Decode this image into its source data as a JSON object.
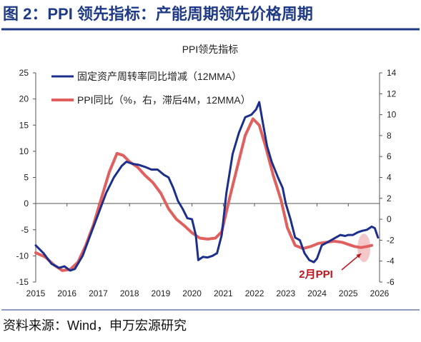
{
  "figure": {
    "heading": "图 2：PPI 领先指标：产能周期领先价格周期",
    "source": "资料来源：Wind，申万宏源研究",
    "colors": {
      "heading": "#1f3a86",
      "rule": "#1f3a86",
      "annotation": "#c0141c",
      "highlight": "#f0b4b8"
    }
  },
  "chart_data": {
    "type": "line",
    "title": "PPI领先指标",
    "x_axis": {
      "min": 2015,
      "max": 2026,
      "ticks": [
        2015,
        2016,
        2017,
        2018,
        2019,
        2020,
        2021,
        2022,
        2023,
        2024,
        2025,
        2026
      ]
    },
    "y_left": {
      "min": -15,
      "max": 25,
      "ticks": [
        -15,
        -10,
        -5,
        0,
        5,
        10,
        15,
        20,
        25
      ]
    },
    "y_right": {
      "min": -6,
      "max": 14,
      "ticks": [
        -6,
        -4,
        -2,
        0,
        2,
        4,
        6,
        8,
        10,
        12,
        14
      ]
    },
    "grid": false,
    "legend_position": "top-left",
    "series": [
      {
        "name": "固定资产周转率同比增减（12MMA）",
        "axis": "left",
        "color": "#1c2f8c",
        "points": [
          [
            2015.0,
            -8
          ],
          [
            2015.25,
            -9.5
          ],
          [
            2015.5,
            -11.5
          ],
          [
            2015.75,
            -12.3
          ],
          [
            2015.92,
            -12
          ],
          [
            2016.1,
            -12.8
          ],
          [
            2016.25,
            -12.5
          ],
          [
            2016.5,
            -10
          ],
          [
            2016.75,
            -6
          ],
          [
            2017.0,
            -2
          ],
          [
            2017.25,
            2
          ],
          [
            2017.5,
            5
          ],
          [
            2017.75,
            7.2
          ],
          [
            2017.9,
            8
          ],
          [
            2018.1,
            7.6
          ],
          [
            2018.3,
            7.4
          ],
          [
            2018.5,
            7.0
          ],
          [
            2018.7,
            6.5
          ],
          [
            2018.9,
            6.5
          ],
          [
            2019.1,
            5.5
          ],
          [
            2019.25,
            5.0
          ],
          [
            2019.4,
            3.0
          ],
          [
            2019.55,
            0.5
          ],
          [
            2019.7,
            -1.0
          ],
          [
            2019.85,
            -2.8
          ],
          [
            2020.0,
            -3.0
          ],
          [
            2020.12,
            -6.0
          ],
          [
            2020.2,
            -10.8
          ],
          [
            2020.35,
            -10.2
          ],
          [
            2020.5,
            -10.3
          ],
          [
            2020.65,
            -10.0
          ],
          [
            2020.8,
            -9.5
          ],
          [
            2020.95,
            -6.0
          ],
          [
            2021.1,
            2.0
          ],
          [
            2021.3,
            9.5
          ],
          [
            2021.5,
            13.5
          ],
          [
            2021.7,
            16.5
          ],
          [
            2021.9,
            17.0
          ],
          [
            2022.05,
            18.0
          ],
          [
            2022.15,
            19.4
          ],
          [
            2022.25,
            16.0
          ],
          [
            2022.4,
            11.0
          ],
          [
            2022.55,
            8.0
          ],
          [
            2022.75,
            5.0
          ],
          [
            2022.9,
            3.0
          ],
          [
            2023.0,
            0.0
          ],
          [
            2023.15,
            -3.0
          ],
          [
            2023.3,
            -6.5
          ],
          [
            2023.45,
            -7.0
          ],
          [
            2023.6,
            -9.5
          ],
          [
            2023.75,
            -10.8
          ],
          [
            2023.9,
            -11.2
          ],
          [
            2024.0,
            -10.5
          ],
          [
            2024.15,
            -8.0
          ],
          [
            2024.3,
            -7.5
          ],
          [
            2024.45,
            -7.0
          ],
          [
            2024.6,
            -6.5
          ],
          [
            2024.75,
            -6.0
          ],
          [
            2024.9,
            -6.2
          ],
          [
            2025.0,
            -6.0
          ],
          [
            2025.15,
            -6.0
          ],
          [
            2025.3,
            -5.5
          ],
          [
            2025.45,
            -5.2
          ],
          [
            2025.6,
            -5.0
          ],
          [
            2025.75,
            -4.4
          ],
          [
            2025.85,
            -4.7
          ],
          [
            2025.95,
            -6.5
          ]
        ]
      },
      {
        "name": "PPI同比（%，右，滞后4M，12MMA）",
        "axis": "right",
        "color": "#e06060",
        "points": [
          [
            2015.0,
            -3.2
          ],
          [
            2015.3,
            -3.6
          ],
          [
            2015.6,
            -4.4
          ],
          [
            2015.85,
            -4.9
          ],
          [
            2016.1,
            -4.8
          ],
          [
            2016.35,
            -4.1
          ],
          [
            2016.6,
            -2.5
          ],
          [
            2016.85,
            -0.5
          ],
          [
            2017.1,
            2.0
          ],
          [
            2017.35,
            4.5
          ],
          [
            2017.6,
            6.3
          ],
          [
            2017.8,
            6.1
          ],
          [
            2018.0,
            5.5
          ],
          [
            2018.25,
            5.0
          ],
          [
            2018.5,
            4.2
          ],
          [
            2018.75,
            3.5
          ],
          [
            2019.0,
            2.5
          ],
          [
            2019.25,
            1.0
          ],
          [
            2019.5,
            0.0
          ],
          [
            2019.75,
            -0.6
          ],
          [
            2020.0,
            -1.3
          ],
          [
            2020.25,
            -1.8
          ],
          [
            2020.5,
            -1.9
          ],
          [
            2020.75,
            -1.8
          ],
          [
            2020.95,
            -1.2
          ],
          [
            2021.2,
            2.0
          ],
          [
            2021.45,
            5.0
          ],
          [
            2021.7,
            8.0
          ],
          [
            2021.95,
            9.6
          ],
          [
            2022.15,
            9.0
          ],
          [
            2022.35,
            7.0
          ],
          [
            2022.6,
            4.2
          ],
          [
            2022.85,
            1.8
          ],
          [
            2023.05,
            -0.8
          ],
          [
            2023.3,
            -2.5
          ],
          [
            2023.55,
            -2.8
          ],
          [
            2023.8,
            -2.6
          ],
          [
            2024.05,
            -2.3
          ],
          [
            2024.3,
            -2.2
          ],
          [
            2024.55,
            -2.1
          ],
          [
            2024.8,
            -2.2
          ],
          [
            2025.0,
            -2.4
          ],
          [
            2025.2,
            -2.6
          ],
          [
            2025.4,
            -2.7
          ],
          [
            2025.6,
            -2.6
          ],
          [
            2025.75,
            -2.5
          ]
        ]
      }
    ],
    "annotations": [
      {
        "text": "2月PPI",
        "target": [
          2025.5,
          -2.6
        ],
        "axis": "right"
      }
    ]
  }
}
